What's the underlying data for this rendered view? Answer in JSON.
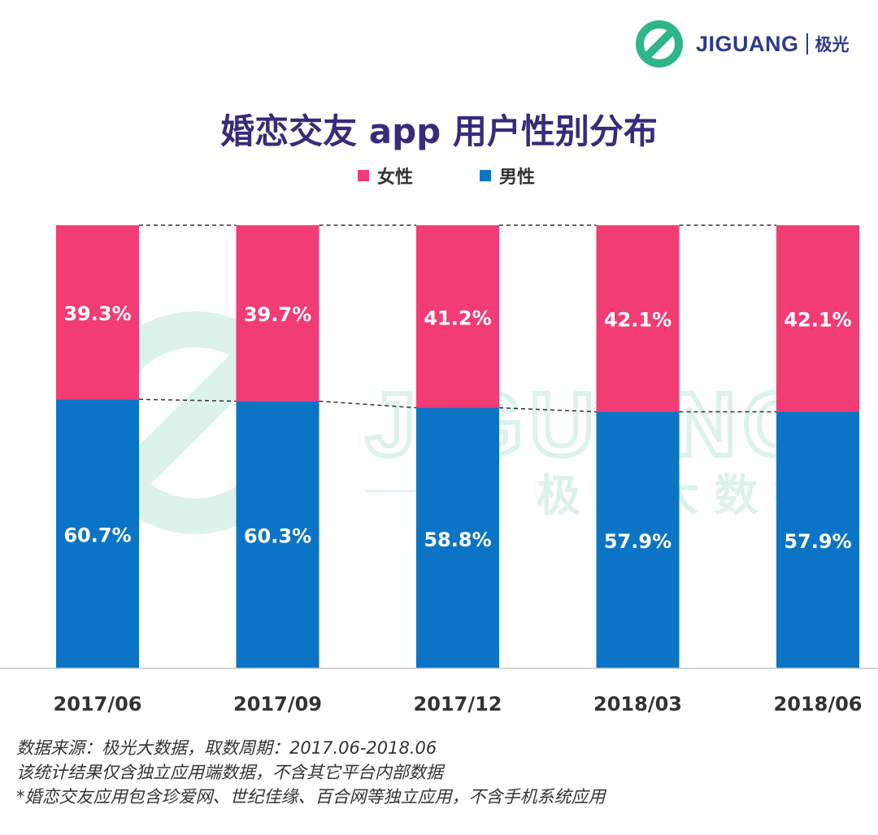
{
  "brand": {
    "logo_text": "JIGUANG",
    "logo_cn": "极光",
    "watermark_text": "JIGUANG",
    "watermark_cn": "极 光 大 数 据"
  },
  "colors": {
    "female": "#f23c75",
    "male": "#0b74c4",
    "title": "#3a2a7a",
    "brand_green": "#2fb58a"
  },
  "chart_data": {
    "type": "bar",
    "stacked": true,
    "normalized": true,
    "title": "婚恋交友 app 用户性别分布",
    "categories": [
      "2017/06",
      "2017/09",
      "2017/12",
      "2018/03",
      "2018/06"
    ],
    "series": [
      {
        "name": "女性",
        "values": [
          39.3,
          39.7,
          41.2,
          42.1,
          42.1
        ],
        "labels": [
          "39.3%",
          "39.7%",
          "41.2%",
          "42.1%",
          "42.1%"
        ]
      },
      {
        "name": "男性",
        "values": [
          60.7,
          60.3,
          58.8,
          57.9,
          57.9
        ],
        "labels": [
          "60.7%",
          "60.3%",
          "58.8%",
          "57.9%",
          "57.9%"
        ]
      }
    ],
    "ylim": [
      0,
      100
    ],
    "legend_position": "top-center",
    "grid": false,
    "xlabel": "",
    "ylabel": ""
  },
  "footnotes": [
    "数据来源：极光大数据，取数周期：2017.06-2018.06",
    "该统计结果仅含独立应用端数据，不含其它平台内部数据",
    " *婚恋交友应用包含珍爱网、世纪佳缘、百合网等独立应用，不含手机系统应用"
  ]
}
